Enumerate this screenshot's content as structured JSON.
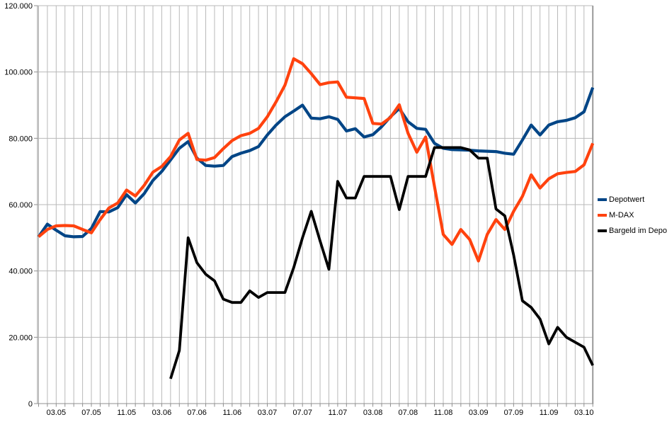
{
  "chart_data": {
    "type": "line",
    "title": "",
    "xlabel": "",
    "ylabel": "",
    "months_total": 64,
    "x_range_note": "monthly points from 01.05 to 04.10",
    "x_tick_indices": [
      2,
      6,
      10,
      14,
      18,
      22,
      26,
      30,
      34,
      38,
      42,
      46,
      50,
      54,
      58,
      62
    ],
    "x_tick_labels": [
      "03.05",
      "07.05",
      "11.05",
      "03.06",
      "07.06",
      "11.06",
      "03.07",
      "07.07",
      "11.07",
      "03.08",
      "07.08",
      "11.08",
      "03.09",
      "07.09",
      "11.09",
      "03.10"
    ],
    "y_tick_values": [
      0,
      20000,
      40000,
      60000,
      80000,
      100000,
      120000
    ],
    "y_tick_labels": [
      "0",
      "20.000",
      "40.000",
      "60.000",
      "80.000",
      "100.000",
      "120.000"
    ],
    "ylim": [
      0,
      120000
    ],
    "grid": "vertical line every month, horizontal line every 20000",
    "legend_position": "right-middle",
    "series": [
      {
        "name": "Depotwert",
        "color": "#004586",
        "start_index": 0,
        "values": [
          50300,
          54100,
          52300,
          50600,
          50300,
          50400,
          52800,
          57900,
          57800,
          59100,
          63000,
          60500,
          63300,
          67300,
          70000,
          73500,
          77000,
          79000,
          74000,
          71800,
          71600,
          71800,
          74500,
          75500,
          76300,
          77500,
          81000,
          84000,
          86500,
          88200,
          90000,
          86100,
          85900,
          86500,
          85700,
          82200,
          82900,
          80400,
          81100,
          83500,
          86500,
          89000,
          85000,
          83000,
          82700,
          78500,
          77000,
          76600,
          76500,
          76400,
          76200,
          76100,
          76000,
          75500,
          75200,
          79500,
          84000,
          81000,
          84000,
          85000,
          85400,
          86200,
          88000,
          95300
        ]
      },
      {
        "name": "M-DAX",
        "color": "#FF420E",
        "start_index": 0,
        "values": [
          50300,
          52500,
          53600,
          53700,
          53600,
          52500,
          51500,
          55500,
          59000,
          60500,
          64400,
          62600,
          65800,
          69800,
          71500,
          74500,
          79500,
          81500,
          73600,
          73400,
          74200,
          76900,
          79300,
          80800,
          81500,
          83000,
          86500,
          91000,
          96000,
          104000,
          102500,
          99500,
          96200,
          96800,
          97000,
          92400,
          92200,
          92000,
          84500,
          84300,
          86300,
          90100,
          81500,
          75800,
          80400,
          65500,
          51000,
          48000,
          52500,
          49500,
          43000,
          51000,
          55500,
          52500,
          58000,
          62500,
          69000,
          65000,
          67800,
          69300,
          69700,
          70000,
          72000,
          78500
        ]
      },
      {
        "name": "Bargeld im Depot",
        "color": "#000000",
        "start_index": 15,
        "values": [
          7500,
          16000,
          50000,
          42500,
          39000,
          37000,
          31500,
          30500,
          30500,
          34000,
          32000,
          33500,
          33500,
          33500,
          41000,
          50000,
          58000,
          49000,
          40500,
          67000,
          62000,
          62000,
          68500,
          68500,
          68500,
          68500,
          58500,
          68500,
          68500,
          68500,
          77200,
          77200,
          77200,
          77200,
          76500,
          74000,
          74000,
          58700,
          56600,
          44800,
          31000,
          29000,
          25500,
          18000,
          23000,
          20000,
          18500,
          17000,
          11500
        ]
      }
    ]
  },
  "colors": {
    "background": "#ffffff",
    "gridline": "#b9b9b9",
    "axis": "#8f8f8f",
    "right_border": "#9a9a9a",
    "text": "#000000"
  }
}
